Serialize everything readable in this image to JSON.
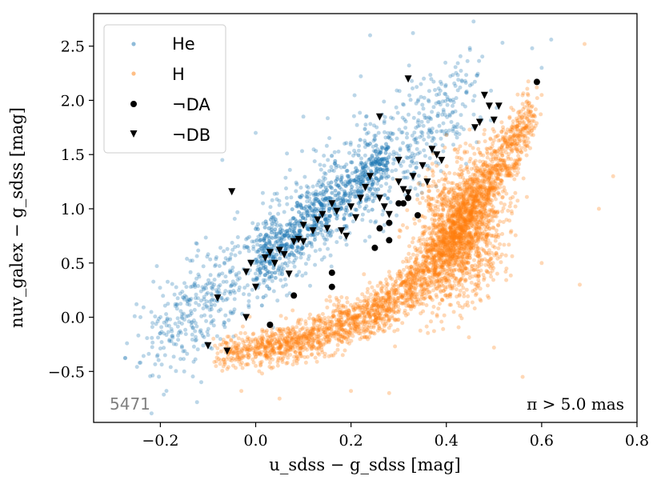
{
  "chart_data": {
    "type": "scatter",
    "title": "",
    "xlabel": "u_sdss − g_sdss [mag]",
    "ylabel": "nuv_galex − g_sdss [mag]",
    "xlim": [
      -0.34,
      0.8
    ],
    "ylim": [
      -0.97,
      2.8
    ],
    "x_ticks": [
      -0.2,
      0.0,
      0.2,
      0.4,
      0.6,
      0.8
    ],
    "x_tick_labels": [
      "−0.2",
      "0.0",
      "0.2",
      "0.4",
      "0.6",
      "0.8"
    ],
    "y_ticks": [
      -0.5,
      0.0,
      0.5,
      1.0,
      1.5,
      2.0,
      2.5
    ],
    "y_tick_labels": [
      "−0.5",
      "0.0",
      "0.5",
      "1.0",
      "1.5",
      "2.0",
      "2.5"
    ],
    "grid": false,
    "legend_position": "top-left",
    "annotations": {
      "count": "5471",
      "condition": "π > 5.0 mas"
    },
    "series": [
      {
        "name": "He",
        "marker": "circle-small",
        "color": "#1f77b4",
        "alpha": 0.3,
        "trend": {
          "x_from": -0.22,
          "x_to": 0.45,
          "y_from": -0.25,
          "y_to": 2.05
        },
        "spread_x": 0.07,
        "spread_y": 0.17,
        "n": 1100,
        "points": [
          [
            -0.27,
            -0.24
          ],
          [
            -0.19,
            -0.35
          ],
          [
            -0.15,
            -0.5
          ],
          [
            0.24,
            2.6
          ],
          [
            0.33,
            2.62
          ],
          [
            0.58,
            2.48
          ],
          [
            0.62,
            2.56
          ],
          [
            -0.07,
            1.45
          ],
          [
            0.0,
            1.7
          ],
          [
            0.1,
            1.85
          ],
          [
            0.6,
            2.3
          ]
        ]
      },
      {
        "name": "H",
        "marker": "circle-small",
        "color": "#ff7f0e",
        "alpha": 0.3,
        "trend_knots": [
          [
            -0.08,
            -0.35
          ],
          [
            0.1,
            -0.22
          ],
          [
            0.25,
            0.05
          ],
          [
            0.33,
            0.3
          ],
          [
            0.38,
            0.55
          ],
          [
            0.43,
            0.85
          ],
          [
            0.47,
            1.15
          ],
          [
            0.52,
            1.45
          ],
          [
            0.58,
            1.85
          ]
        ],
        "spread_y": 0.12,
        "cluster": {
          "x": 0.43,
          "y": 0.8,
          "sx": 0.045,
          "sy": 0.3,
          "n": 1500
        },
        "n": 4000,
        "points": [
          [
            0.69,
            2.52
          ],
          [
            0.75,
            1.3
          ],
          [
            0.6,
            0.5
          ],
          [
            0.68,
            0.3
          ],
          [
            0.2,
            -0.68
          ],
          [
            0.28,
            -0.7
          ],
          [
            0.05,
            -0.75
          ],
          [
            -0.03,
            -0.68
          ],
          [
            0.5,
            -0.28
          ],
          [
            0.56,
            -0.55
          ],
          [
            0.6,
            2.05
          ],
          [
            0.72,
            1.0
          ]
        ]
      },
      {
        "name": "¬DA",
        "marker": "circle",
        "color": "#000000",
        "points": [
          [
            0.03,
            -0.07
          ],
          [
            0.08,
            0.2
          ],
          [
            0.16,
            0.28
          ],
          [
            0.16,
            0.41
          ],
          [
            0.25,
            0.64
          ],
          [
            0.26,
            0.82
          ],
          [
            0.28,
            0.71
          ],
          [
            0.28,
            0.87
          ],
          [
            0.3,
            1.05
          ],
          [
            0.31,
            1.05
          ],
          [
            0.32,
            1.1
          ],
          [
            0.34,
            0.94
          ],
          [
            0.59,
            2.17
          ]
        ]
      },
      {
        "name": "¬DB",
        "marker": "triangle-down",
        "color": "#000000",
        "points": [
          [
            -0.1,
            -0.26
          ],
          [
            -0.06,
            -0.31
          ],
          [
            -0.05,
            1.16
          ],
          [
            -0.02,
            0.42
          ],
          [
            -0.02,
            0.0
          ],
          [
            -0.01,
            0.5
          ],
          [
            0.02,
            0.55
          ],
          [
            0.03,
            0.6
          ],
          [
            0.04,
            0.5
          ],
          [
            0.05,
            0.62
          ],
          [
            0.06,
            0.58
          ],
          [
            0.07,
            0.4
          ],
          [
            0.08,
            0.7
          ],
          [
            0.09,
            0.72
          ],
          [
            0.1,
            0.7
          ],
          [
            0.1,
            0.85
          ],
          [
            0.12,
            0.8
          ],
          [
            0.13,
            0.9
          ],
          [
            0.14,
            0.95
          ],
          [
            0.15,
            0.82
          ],
          [
            0.16,
            1.05
          ],
          [
            0.17,
            0.98
          ],
          [
            0.18,
            0.8
          ],
          [
            0.19,
            0.75
          ],
          [
            0.2,
            1.02
          ],
          [
            0.21,
            0.92
          ],
          [
            0.22,
            1.1
          ],
          [
            0.23,
            1.2
          ],
          [
            0.24,
            1.3
          ],
          [
            0.26,
            1.1
          ],
          [
            0.27,
            1.02
          ],
          [
            0.28,
            0.95
          ],
          [
            0.3,
            1.45
          ],
          [
            0.3,
            1.25
          ],
          [
            0.31,
            1.18
          ],
          [
            0.32,
            1.15
          ],
          [
            0.32,
            2.2
          ],
          [
            0.33,
            1.3
          ],
          [
            0.35,
            1.4
          ],
          [
            0.36,
            1.25
          ],
          [
            0.37,
            1.55
          ],
          [
            0.38,
            1.5
          ],
          [
            0.39,
            1.45
          ],
          [
            0.26,
            1.85
          ],
          [
            0.46,
            1.75
          ],
          [
            0.47,
            1.8
          ],
          [
            0.48,
            2.05
          ],
          [
            0.49,
            1.95
          ],
          [
            0.51,
            1.95
          ],
          [
            0.5,
            1.82
          ],
          [
            -0.08,
            0.18
          ],
          [
            0.0,
            0.28
          ]
        ]
      }
    ]
  }
}
